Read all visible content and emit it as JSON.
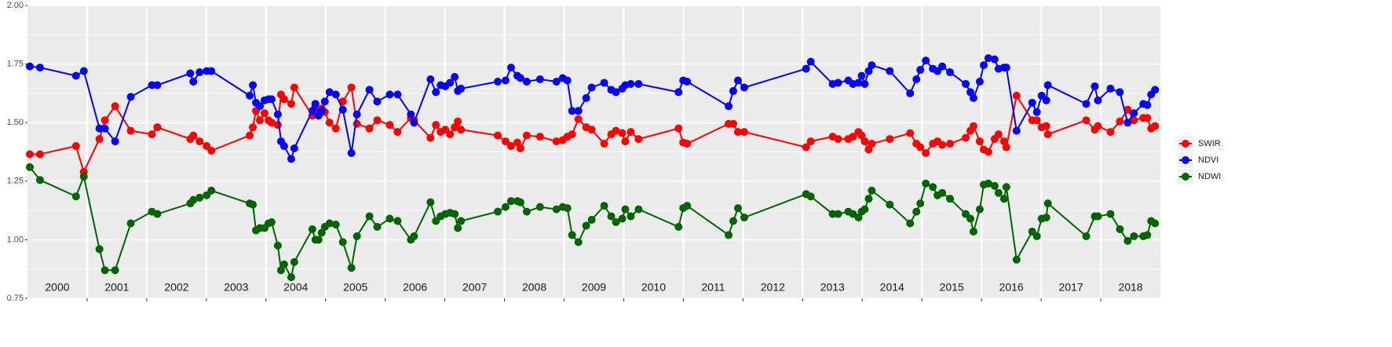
{
  "chart_data": {
    "type": "line",
    "x": [
      2000.039,
      2000.21,
      2000.814,
      2000.945,
      2001.207,
      2001.299,
      2001.47,
      2001.732,
      2002.087,
      2002.178,
      2002.73,
      2002.782,
      2002.887,
      2003.005,
      2003.084,
      2003.727,
      2003.78,
      2003.832,
      2003.898,
      2003.976,
      2004.042,
      2004.094,
      2004.199,
      2004.252,
      2004.304,
      2004.423,
      2004.475,
      2004.777,
      2004.829,
      2004.882,
      2004.934,
      2004.987,
      2005.066,
      2005.171,
      2005.289,
      2005.433,
      2005.525,
      2005.735,
      2005.866,
      2006.076,
      2006.207,
      2006.43,
      2006.483,
      2006.759,
      2006.85,
      2006.929,
      2007.008,
      2007.087,
      2007.165,
      2007.218,
      2007.27,
      2007.887,
      2008.018,
      2008.11,
      2008.215,
      2008.268,
      2008.373,
      2008.596,
      2008.871,
      2008.976,
      2009.055,
      2009.134,
      2009.239,
      2009.37,
      2009.462,
      2009.672,
      2009.79,
      2009.869,
      2009.974,
      2010.026,
      2010.118,
      2010.249,
      2010.919,
      2010.997,
      2011.063,
      2011.759,
      2011.837,
      2011.916,
      2012.021,
      2013.058,
      2013.136,
      2013.504,
      2013.596,
      2013.766,
      2013.845,
      2013.937,
      2013.99,
      2014.042,
      2014.108,
      2014.16,
      2014.462,
      2014.803,
      2014.908,
      2014.974,
      2015.066,
      2015.184,
      2015.262,
      2015.341,
      2015.472,
      2015.735,
      2015.814,
      2015.866,
      2015.971,
      2016.037,
      2016.115,
      2016.22,
      2016.286,
      2016.378,
      2016.417,
      2016.588,
      2016.85,
      2016.929,
      2017.008,
      2017.087,
      2017.113,
      2017.756,
      2017.9,
      2017.953,
      2018.163,
      2018.32,
      2018.451,
      2018.556,
      2018.714,
      2018.78,
      2018.845,
      2018.911
    ],
    "series": [
      {
        "name": "SWIR",
        "color": "#ff0000",
        "values": [
          1.365,
          1.365,
          1.4,
          1.29,
          1.43,
          1.51,
          1.57,
          1.465,
          1.45,
          1.48,
          1.43,
          1.445,
          1.42,
          1.4,
          1.38,
          1.445,
          1.48,
          1.55,
          1.51,
          1.54,
          1.51,
          1.5,
          1.49,
          1.62,
          1.6,
          1.58,
          1.65,
          1.53,
          1.57,
          1.53,
          1.56,
          1.545,
          1.5,
          1.475,
          1.59,
          1.65,
          1.495,
          1.475,
          1.51,
          1.49,
          1.46,
          1.52,
          1.51,
          1.435,
          1.49,
          1.46,
          1.47,
          1.45,
          1.48,
          1.505,
          1.47,
          1.445,
          1.42,
          1.4,
          1.415,
          1.39,
          1.445,
          1.44,
          1.42,
          1.425,
          1.44,
          1.45,
          1.515,
          1.48,
          1.47,
          1.41,
          1.45,
          1.465,
          1.455,
          1.42,
          1.46,
          1.43,
          1.475,
          1.415,
          1.41,
          1.495,
          1.495,
          1.46,
          1.46,
          1.395,
          1.42,
          1.44,
          1.43,
          1.43,
          1.44,
          1.46,
          1.445,
          1.42,
          1.385,
          1.41,
          1.43,
          1.455,
          1.41,
          1.395,
          1.37,
          1.41,
          1.42,
          1.405,
          1.41,
          1.435,
          1.465,
          1.485,
          1.42,
          1.385,
          1.375,
          1.43,
          1.45,
          1.42,
          1.395,
          1.615,
          1.51,
          1.51,
          1.48,
          1.485,
          1.45,
          1.51,
          1.47,
          1.485,
          1.46,
          1.505,
          1.555,
          1.51,
          1.52,
          1.52,
          1.475,
          1.485
        ]
      },
      {
        "name": "NDVI",
        "color": "#0000ff",
        "values": [
          1.74,
          1.735,
          1.7,
          1.72,
          1.475,
          1.475,
          1.42,
          1.61,
          1.66,
          1.66,
          1.71,
          1.675,
          1.715,
          1.72,
          1.72,
          1.615,
          1.66,
          1.585,
          1.57,
          1.595,
          1.6,
          1.6,
          1.535,
          1.42,
          1.4,
          1.345,
          1.39,
          1.55,
          1.58,
          1.53,
          1.55,
          1.59,
          1.63,
          1.62,
          1.555,
          1.37,
          1.535,
          1.64,
          1.59,
          1.62,
          1.62,
          1.535,
          1.5,
          1.685,
          1.63,
          1.66,
          1.655,
          1.67,
          1.695,
          1.635,
          1.645,
          1.675,
          1.68,
          1.735,
          1.7,
          1.69,
          1.675,
          1.685,
          1.675,
          1.69,
          1.68,
          1.55,
          1.55,
          1.605,
          1.65,
          1.67,
          1.64,
          1.63,
          1.645,
          1.66,
          1.665,
          1.665,
          1.63,
          1.68,
          1.675,
          1.57,
          1.635,
          1.68,
          1.65,
          1.73,
          1.76,
          1.665,
          1.67,
          1.68,
          1.665,
          1.67,
          1.7,
          1.665,
          1.72,
          1.745,
          1.72,
          1.625,
          1.685,
          1.725,
          1.765,
          1.73,
          1.72,
          1.74,
          1.715,
          1.665,
          1.63,
          1.605,
          1.675,
          1.745,
          1.775,
          1.77,
          1.73,
          1.735,
          1.735,
          1.465,
          1.585,
          1.545,
          1.615,
          1.595,
          1.66,
          1.58,
          1.655,
          1.595,
          1.645,
          1.63,
          1.5,
          1.54,
          1.58,
          1.575,
          1.62,
          1.64
        ]
      },
      {
        "name": "NDWI",
        "color": "#006400",
        "values": [
          1.31,
          1.255,
          1.185,
          1.27,
          0.96,
          0.87,
          0.87,
          1.07,
          1.12,
          1.11,
          1.155,
          1.17,
          1.18,
          1.19,
          1.21,
          1.155,
          1.15,
          1.04,
          1.05,
          1.05,
          1.07,
          1.075,
          0.975,
          0.87,
          0.895,
          0.84,
          0.905,
          1.045,
          1.0,
          1.0,
          1.03,
          1.055,
          1.07,
          1.065,
          0.99,
          0.88,
          1.015,
          1.1,
          1.055,
          1.09,
          1.08,
          1.0,
          1.015,
          1.16,
          1.08,
          1.1,
          1.11,
          1.115,
          1.11,
          1.05,
          1.08,
          1.12,
          1.14,
          1.165,
          1.165,
          1.16,
          1.12,
          1.14,
          1.13,
          1.14,
          1.135,
          1.02,
          0.99,
          1.06,
          1.085,
          1.145,
          1.1,
          1.075,
          1.09,
          1.13,
          1.1,
          1.13,
          1.055,
          1.135,
          1.145,
          1.02,
          1.08,
          1.135,
          1.095,
          1.195,
          1.185,
          1.11,
          1.11,
          1.12,
          1.11,
          1.095,
          1.12,
          1.13,
          1.175,
          1.21,
          1.15,
          1.07,
          1.12,
          1.155,
          1.24,
          1.225,
          1.19,
          1.2,
          1.175,
          1.11,
          1.09,
          1.035,
          1.13,
          1.235,
          1.24,
          1.23,
          1.2,
          1.175,
          1.225,
          0.915,
          1.035,
          1.015,
          1.09,
          1.095,
          1.155,
          1.015,
          1.1,
          1.1,
          1.11,
          1.045,
          0.995,
          1.015,
          1.015,
          1.02,
          1.08,
          1.07
        ]
      }
    ],
    "xlim": [
      2000,
      2019
    ],
    "xticks": [
      2001,
      2002,
      2003,
      2004,
      2005,
      2006,
      2007,
      2008,
      2009,
      2010,
      2011,
      2012,
      2013,
      2014,
      2015,
      2016,
      2017,
      2018
    ],
    "year_labels": [
      {
        "value": 2000.5,
        "label": "2000"
      },
      {
        "value": 2001.5,
        "label": "2001"
      },
      {
        "value": 2002.5,
        "label": "2002"
      },
      {
        "value": 2003.5,
        "label": "2003"
      },
      {
        "value": 2004.5,
        "label": "2004"
      },
      {
        "value": 2005.5,
        "label": "2005"
      },
      {
        "value": 2006.5,
        "label": "2006"
      },
      {
        "value": 2007.5,
        "label": "2007"
      },
      {
        "value": 2008.5,
        "label": "2008"
      },
      {
        "value": 2009.5,
        "label": "2009"
      },
      {
        "value": 2010.5,
        "label": "2010"
      },
      {
        "value": 2011.5,
        "label": "2011"
      },
      {
        "value": 2012.5,
        "label": "2012"
      },
      {
        "value": 2013.5,
        "label": "2013"
      },
      {
        "value": 2014.5,
        "label": "2014"
      },
      {
        "value": 2015.5,
        "label": "2015"
      },
      {
        "value": 2016.5,
        "label": "2016"
      },
      {
        "value": 2017.5,
        "label": "2017"
      },
      {
        "value": 2018.5,
        "label": "2018"
      }
    ],
    "ylim": [
      0.75,
      2.0
    ],
    "yticks": [
      {
        "value": 0.75,
        "label": "0.75"
      },
      {
        "value": 1.0,
        "label": "1.00"
      },
      {
        "value": 1.25,
        "label": "1.25"
      },
      {
        "value": 1.5,
        "label": "1.50"
      },
      {
        "value": 1.75,
        "label": "1.75"
      },
      {
        "value": 2.0,
        "label": "2.00"
      }
    ],
    "grid": true,
    "legend": "right"
  }
}
